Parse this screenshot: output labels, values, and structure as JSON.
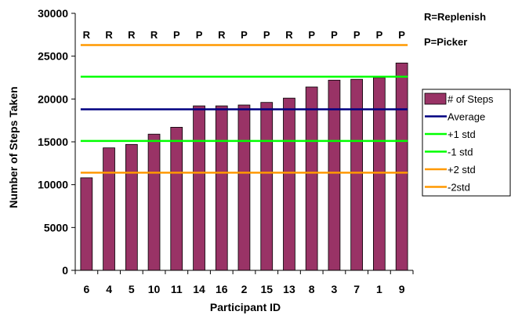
{
  "chart_data": {
    "type": "bar",
    "xlabel": "Participant ID",
    "ylabel": "Number of Steps Taken",
    "ylim": [
      0,
      30000
    ],
    "yticks": [
      0,
      5000,
      10000,
      15000,
      20000,
      25000,
      30000
    ],
    "grid": false,
    "categories": [
      "6",
      "4",
      "5",
      "10",
      "11",
      "14",
      "16",
      "2",
      "15",
      "13",
      "8",
      "3",
      "7",
      "1",
      "9"
    ],
    "roles": [
      "R",
      "R",
      "R",
      "R",
      "P",
      "P",
      "R",
      "P",
      "P",
      "R",
      "P",
      "P",
      "P",
      "P",
      "P"
    ],
    "series": [
      {
        "name": "# of Steps",
        "type": "bar",
        "color": "#993366",
        "values": [
          10800,
          14300,
          14700,
          15900,
          16700,
          19200,
          19200,
          19300,
          19600,
          20100,
          21400,
          22200,
          22300,
          22500,
          24200
        ]
      }
    ],
    "reference_lines": [
      {
        "name": "Average",
        "value": 18800,
        "color": "#000080"
      },
      {
        "name": "+1 std",
        "value": 22600,
        "color": "#00ff00"
      },
      {
        "name": "-1 std",
        "value": 15100,
        "color": "#00ff00"
      },
      {
        "name": "+2 std",
        "value": 26300,
        "color": "#ff9900"
      },
      {
        "name": "-2std",
        "value": 11400,
        "color": "#ff9900"
      }
    ],
    "legend_position": "right",
    "key": {
      "replenish": "R=Replenish",
      "picker": "P=Picker"
    }
  }
}
